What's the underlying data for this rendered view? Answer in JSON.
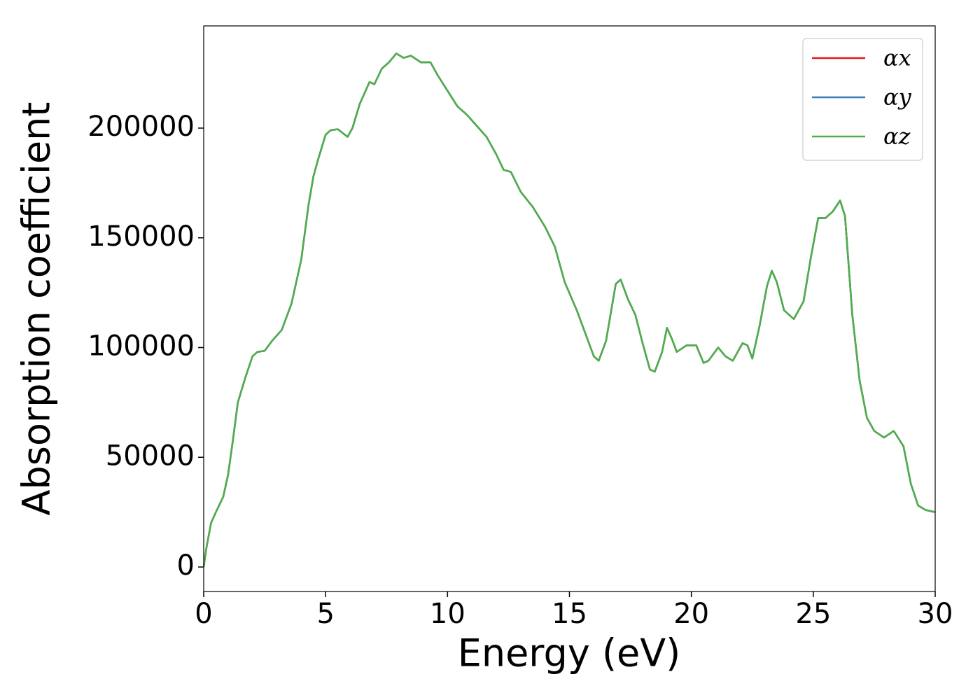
{
  "chart_data": {
    "type": "line",
    "xlabel": "Energy (eV)",
    "ylabel": "Absorption coefficient",
    "xlim": [
      0,
      30
    ],
    "ylim": [
      -11164,
      246571
    ],
    "xticks": [
      0,
      5,
      10,
      15,
      20,
      25,
      30
    ],
    "yticks": [
      0,
      50000,
      100000,
      150000,
      200000
    ],
    "legend": "upper right",
    "x": [
      0,
      0.1,
      0.3,
      0.5,
      0.8,
      1.0,
      1.2,
      1.4,
      1.7,
      2.0,
      2.2,
      2.5,
      2.8,
      3.2,
      3.6,
      4.0,
      4.3,
      4.5,
      4.7,
      5.0,
      5.2,
      5.5,
      5.9,
      6.1,
      6.4,
      6.8,
      7.0,
      7.3,
      7.6,
      7.9,
      8.2,
      8.5,
      8.9,
      9.3,
      9.6,
      10.0,
      10.4,
      10.8,
      11.2,
      11.6,
      12.0,
      12.3,
      12.6,
      13.0,
      13.5,
      14.0,
      14.4,
      14.8,
      15.3,
      15.7,
      16.0,
      16.2,
      16.5,
      16.9,
      17.1,
      17.4,
      17.7,
      18.0,
      18.3,
      18.5,
      18.8,
      19.0,
      19.2,
      19.4,
      19.8,
      20.2,
      20.5,
      20.7,
      21.1,
      21.4,
      21.7,
      22.1,
      22.3,
      22.5,
      22.8,
      23.1,
      23.3,
      23.5,
      23.8,
      24.2,
      24.6,
      24.9,
      25.2,
      25.5,
      25.8,
      26.1,
      26.3,
      26.6,
      26.9,
      27.2,
      27.5,
      27.9,
      28.3,
      28.7,
      29.0,
      29.3,
      29.6,
      30.0
    ],
    "series": [
      {
        "name": "αx",
        "color": "#e41a1c",
        "values": [
          0,
          8000,
          20000,
          25000,
          32000,
          42000,
          58000,
          75000,
          86000,
          96000,
          98000,
          98500,
          103000,
          108000,
          120000,
          140000,
          165000,
          178000,
          186000,
          197000,
          199000,
          199500,
          196000,
          200000,
          211000,
          221000,
          220000,
          227000,
          230000,
          234000,
          232000,
          233000,
          230000,
          230000,
          224000,
          217000,
          210000,
          206000,
          201000,
          196000,
          188000,
          181000,
          180000,
          171000,
          164000,
          155000,
          146000,
          130000,
          117000,
          105000,
          96000,
          94000,
          103000,
          129000,
          131000,
          122000,
          115000,
          102000,
          90000,
          89000,
          98000,
          109000,
          104000,
          98000,
          101000,
          101000,
          93000,
          94000,
          100000,
          96000,
          94000,
          102000,
          101000,
          95000,
          110000,
          128000,
          135000,
          130000,
          117000,
          113000,
          121000,
          141000,
          159000,
          159000,
          162000,
          167000,
          160000,
          115000,
          85000,
          68000,
          62000,
          59000,
          62000,
          55000,
          38000,
          28000,
          26000,
          25000
        ]
      },
      {
        "name": "αy",
        "color": "#377eb8",
        "values": [
          0,
          8000,
          20000,
          25000,
          32000,
          42000,
          58000,
          75000,
          86000,
          96000,
          98000,
          98500,
          103000,
          108000,
          120000,
          140000,
          165000,
          178000,
          186000,
          197000,
          199000,
          199500,
          196000,
          200000,
          211000,
          221000,
          220000,
          227000,
          230000,
          234000,
          232000,
          233000,
          230000,
          230000,
          224000,
          217000,
          210000,
          206000,
          201000,
          196000,
          188000,
          181000,
          180000,
          171000,
          164000,
          155000,
          146000,
          130000,
          117000,
          105000,
          96000,
          94000,
          103000,
          129000,
          131000,
          122000,
          115000,
          102000,
          90000,
          89000,
          98000,
          109000,
          104000,
          98000,
          101000,
          101000,
          93000,
          94000,
          100000,
          96000,
          94000,
          102000,
          101000,
          95000,
          110000,
          128000,
          135000,
          130000,
          117000,
          113000,
          121000,
          141000,
          159000,
          159000,
          162000,
          167000,
          160000,
          115000,
          85000,
          68000,
          62000,
          59000,
          62000,
          55000,
          38000,
          28000,
          26000,
          25000
        ]
      },
      {
        "name": "αz",
        "color": "#4daf4a",
        "values": [
          0,
          8000,
          20000,
          25000,
          32000,
          42000,
          58000,
          75000,
          86000,
          96000,
          98000,
          98500,
          103000,
          108000,
          120000,
          140000,
          165000,
          178000,
          186000,
          197000,
          199000,
          199500,
          196000,
          200000,
          211000,
          221000,
          220000,
          227000,
          230000,
          234000,
          232000,
          233000,
          230000,
          230000,
          224000,
          217000,
          210000,
          206000,
          201000,
          196000,
          188000,
          181000,
          180000,
          171000,
          164000,
          155000,
          146000,
          130000,
          117000,
          105000,
          96000,
          94000,
          103000,
          129000,
          131000,
          122000,
          115000,
          102000,
          90000,
          89000,
          98000,
          109000,
          104000,
          98000,
          101000,
          101000,
          93000,
          94000,
          100000,
          96000,
          94000,
          102000,
          101000,
          95000,
          110000,
          128000,
          135000,
          130000,
          117000,
          113000,
          121000,
          141000,
          159000,
          159000,
          162000,
          167000,
          160000,
          115000,
          85000,
          68000,
          62000,
          59000,
          62000,
          55000,
          38000,
          28000,
          26000,
          25000
        ]
      }
    ]
  }
}
